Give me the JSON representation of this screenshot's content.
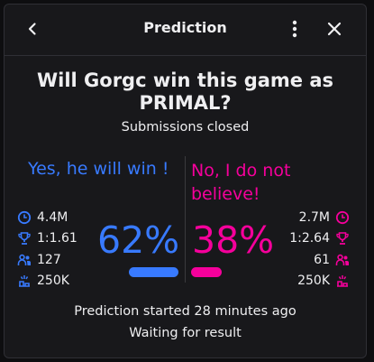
{
  "header": {
    "title": "Prediction",
    "back_icon": "chevron-left-icon",
    "more_icon": "more-vertical-icon",
    "close_icon": "close-icon"
  },
  "question": "Will Gorgc win this game as PRIMAL?",
  "status": "Submissions closed",
  "outcomes": [
    {
      "title": "Yes, he will win !",
      "color": "#387aff",
      "points": "4.4M",
      "ratio": "1:1.61",
      "users": "127",
      "top_bet": "250K",
      "percent": "62%",
      "share": 0.62
    },
    {
      "title": "No, I do not believe!",
      "color": "#f5009b",
      "points": "2.7M",
      "ratio": "1:2.64",
      "users": "61",
      "top_bet": "250K",
      "percent": "38%",
      "share": 0.38
    }
  ],
  "footer": {
    "started": "Prediction started 28 minutes ago",
    "waiting": "Waiting for result"
  }
}
